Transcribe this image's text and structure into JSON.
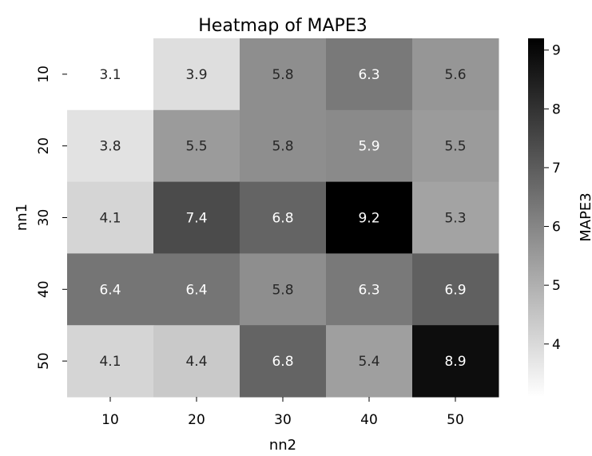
{
  "chart_data": {
    "type": "heatmap",
    "title": "Heatmap of MAPE3",
    "xlabel": "nn2",
    "ylabel": "nn1",
    "x_categories": [
      "10",
      "20",
      "30",
      "40",
      "50"
    ],
    "y_categories": [
      "10",
      "20",
      "30",
      "40",
      "50"
    ],
    "values": [
      [
        3.1,
        3.9,
        5.8,
        6.3,
        5.6
      ],
      [
        3.8,
        5.5,
        5.8,
        5.9,
        5.5
      ],
      [
        4.1,
        7.4,
        6.8,
        9.2,
        5.3
      ],
      [
        6.4,
        6.4,
        5.8,
        6.3,
        6.9
      ],
      [
        4.1,
        4.4,
        6.8,
        5.4,
        8.9
      ]
    ],
    "colorbar": {
      "label": "MAPE3",
      "range": [
        3.1,
        9.2
      ],
      "ticks": [
        "4",
        "5",
        "6",
        "7",
        "8",
        "9"
      ],
      "colormap": "Greys",
      "low_color": "#ffffff",
      "high_color": "#000000"
    },
    "legend": "none",
    "grid": false
  }
}
